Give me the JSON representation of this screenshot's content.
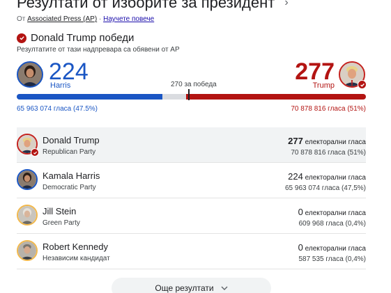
{
  "header": {
    "title": "Резултати от изборите за президент",
    "chevron_icon": "chevron-right-icon"
  },
  "source": {
    "prefix": "От",
    "source_name": "Associated Press (AP)",
    "separator": "·",
    "learn_more": "Научете повече"
  },
  "winner": {
    "headline": "Donald Trump победи",
    "subtext": "Резултатите от тази надпревара са обявени от AP"
  },
  "summary": {
    "harris": {
      "electoral": "224",
      "name": "Harris",
      "votes": "65 963 074 гласа (47.5%)"
    },
    "trump": {
      "electoral": "277",
      "name": "Trump",
      "votes": "70 878 816 гласа (51%)"
    },
    "threshold_label": "270 за победа",
    "bar": {
      "total": 538,
      "harris": 224,
      "trump": 277
    }
  },
  "colors": {
    "democrat": "#1a56c4",
    "republican": "#b31412",
    "neutral": "#dadce0"
  },
  "candidates": [
    {
      "name": "Donald Trump",
      "party": "Republican Party",
      "electoral": "277",
      "electoral_unit": "електорални гласа",
      "popular": "70 878 816 гласа (51%)"
    },
    {
      "name": "Kamala Harris",
      "party": "Democratic Party",
      "electoral": "224",
      "electoral_unit": "електорални гласа",
      "popular": "65 963 074 гласа (47,5%)"
    },
    {
      "name": "Jill Stein",
      "party": "Green Party",
      "electoral": "0",
      "electoral_unit": "електорални гласа",
      "popular": "609 968 гласа (0,4%)"
    },
    {
      "name": "Robert Kennedy",
      "party": "Независим кандидат",
      "electoral": "0",
      "electoral_unit": "електорални гласа",
      "popular": "587 535 гласа (0,4%)"
    }
  ],
  "more_button": {
    "label": "Още резултати",
    "icon": "chevron-down-icon"
  }
}
